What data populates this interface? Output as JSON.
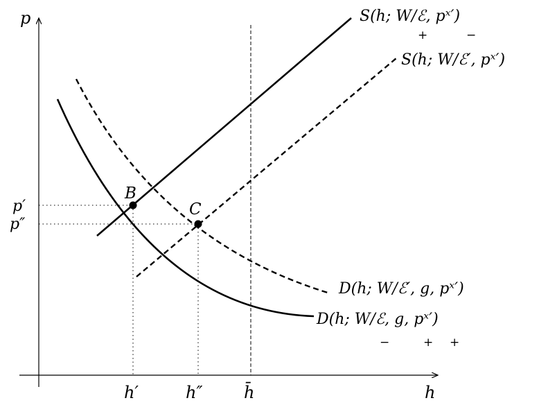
{
  "diagram": {
    "axes": {
      "y_label": "p",
      "x_label": "h",
      "x_ticks": [
        "h′",
        "h″",
        "h̄"
      ],
      "y_ticks": [
        "p′",
        "p″"
      ]
    },
    "curves": {
      "supply_solid": {
        "label": "S(h; W/ℰ, pˣ′)",
        "signs": [
          "+",
          "−"
        ],
        "style": "solid"
      },
      "supply_dashed": {
        "label": "S(h; W/ℰ′, pˣ′)",
        "style": "dashed"
      },
      "demand_dashed": {
        "label": "D(h; W/ℰ′, g, pˣ′)",
        "style": "dashed"
      },
      "demand_solid": {
        "label": "D(h; W/ℰ, g, pˣ′)",
        "signs": [
          "−",
          "+",
          "+"
        ],
        "style": "solid"
      }
    },
    "points": [
      {
        "label": "B"
      },
      {
        "label": "C"
      }
    ],
    "colors": {
      "ink": "#000000",
      "background": "#ffffff"
    }
  }
}
